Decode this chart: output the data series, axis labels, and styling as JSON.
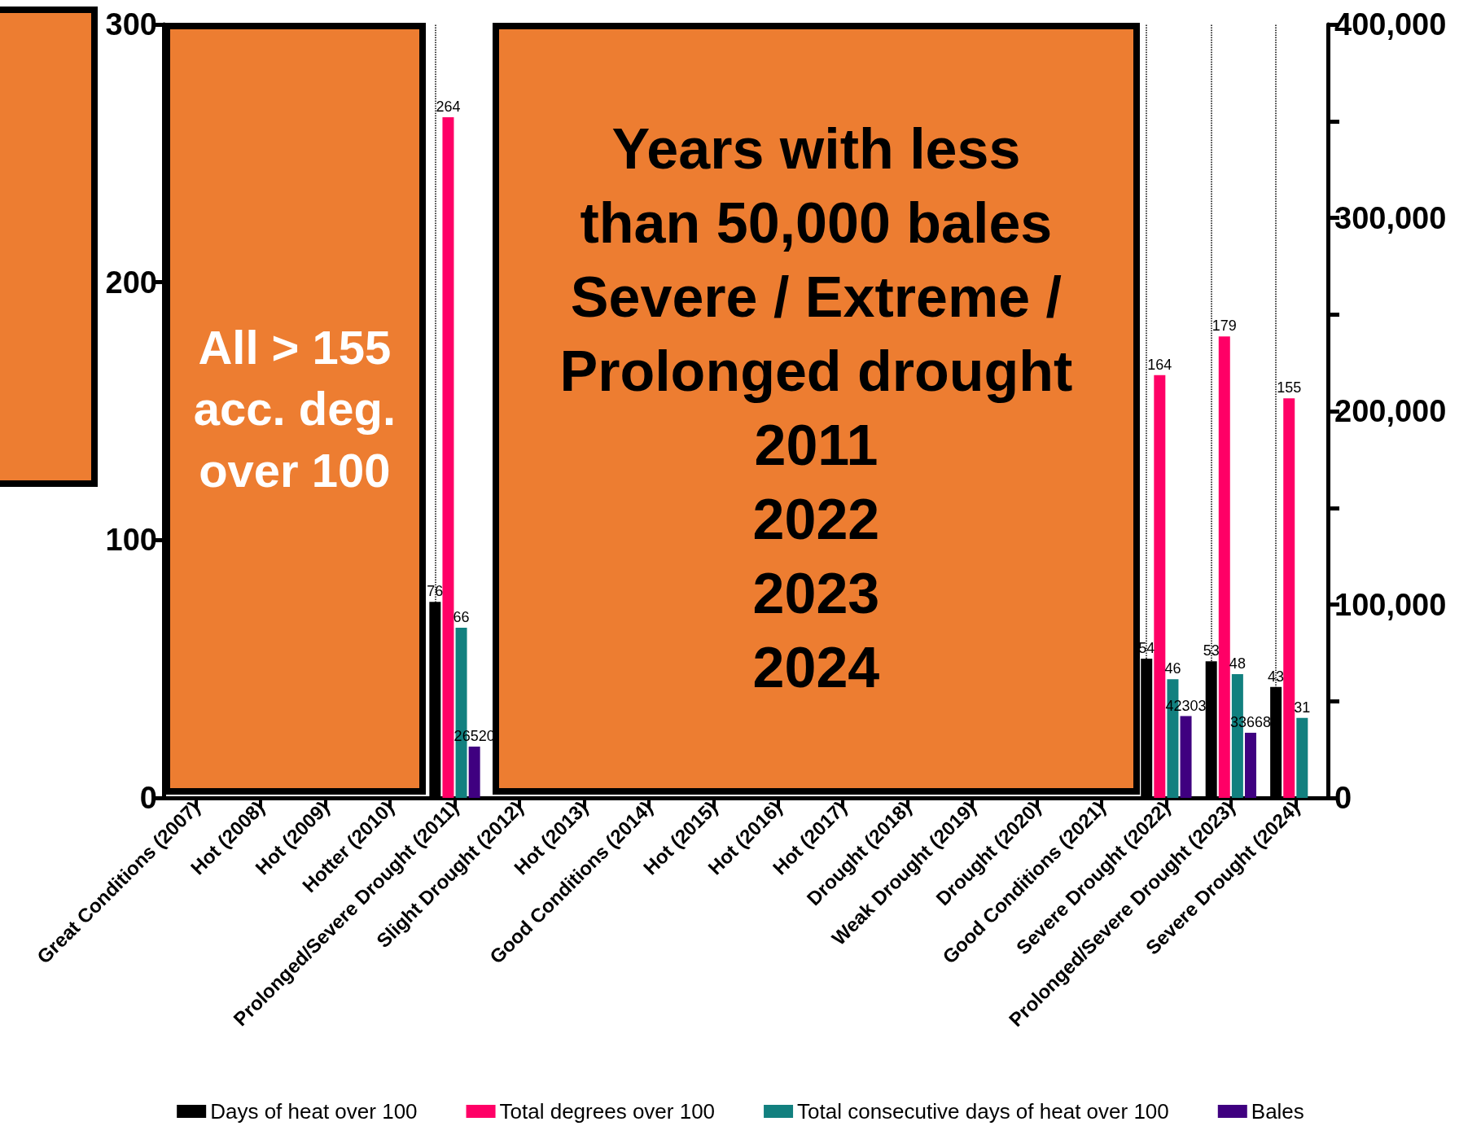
{
  "chart_data": {
    "type": "bar",
    "categories": [
      "Great Conditions (2007)",
      "Hot (2008)",
      "Hot (2009)",
      "Hotter (2010)",
      "Prolonged/Severe Drought (2011)",
      "Slight Drought (2012)",
      "Hot (2013)",
      "Good Conditions (2014)",
      "Hot (2015)",
      "Hot (2016)",
      "Hot (2017)",
      "Drought (2018)",
      "Weak Drought (2019)",
      "Drought (2020)",
      "Good Conditions (2021)",
      "Severe Drought (2022)",
      "Prolonged/Severe Drought (2023)",
      "Severe Drought (2024)"
    ],
    "series": [
      {
        "name": "Days of heat over 100",
        "color": "#000000",
        "values": [
          null,
          null,
          null,
          null,
          76,
          null,
          null,
          null,
          null,
          null,
          null,
          null,
          null,
          null,
          null,
          54,
          53,
          43
        ]
      },
      {
        "name": "Total degrees over 100",
        "color": "#ff0066",
        "values": [
          null,
          null,
          null,
          null,
          264,
          null,
          null,
          null,
          null,
          null,
          null,
          null,
          null,
          null,
          null,
          164,
          179,
          155
        ]
      },
      {
        "name": "Total consecutive days of heat over 100",
        "color": "#12807f",
        "values": [
          null,
          null,
          null,
          null,
          66,
          null,
          null,
          null,
          null,
          null,
          null,
          null,
          null,
          null,
          null,
          46,
          48,
          31
        ]
      },
      {
        "name": "Bales",
        "color": "#3f0080",
        "axis": "y2",
        "values": [
          null,
          null,
          null,
          null,
          26520,
          null,
          null,
          null,
          null,
          null,
          null,
          null,
          null,
          null,
          null,
          42303,
          33668,
          null
        ]
      }
    ],
    "ylim": [
      0,
      300
    ],
    "yticks": [
      0,
      100,
      200,
      300
    ],
    "y2lim": [
      0,
      400000
    ],
    "y2ticks": [
      {
        "value": 0,
        "label": "0"
      },
      {
        "value": 50000,
        "label": null
      },
      {
        "value": 100000,
        "label": "100,000"
      },
      {
        "value": 150000,
        "label": null
      },
      {
        "value": 200000,
        "label": "200,000"
      },
      {
        "value": 250000,
        "label": null
      },
      {
        "value": 300000,
        "label": "300,000"
      },
      {
        "value": 350000,
        "label": null
      },
      {
        "value": 400000,
        "label": "400,000"
      }
    ],
    "ref_lines": [
      {
        "axis": "x",
        "value": "Prolonged/Severe Drought (2011)",
        "color": "#000000",
        "line_style": "dotted"
      },
      {
        "axis": "x",
        "value": "Severe Drought (2022)",
        "color": "#000000",
        "line_style": "dotted"
      },
      {
        "axis": "x",
        "value": "Prolonged/Severe Drought (2023)",
        "color": "#000000",
        "line_style": "dotted"
      },
      {
        "axis": "x",
        "value": "Severe Drought (2024)",
        "color": "#000000",
        "line_style": "dotted"
      }
    ],
    "annotations": [
      "All > 155\nacc. deg.\nover 100",
      "Years with less\nthan 50,000 bales\nSevere / Extreme /\nProlonged drought\n2011\n2022\n2023\n2024"
    ],
    "data_labels": true,
    "grid": false,
    "legend": "bottom"
  }
}
